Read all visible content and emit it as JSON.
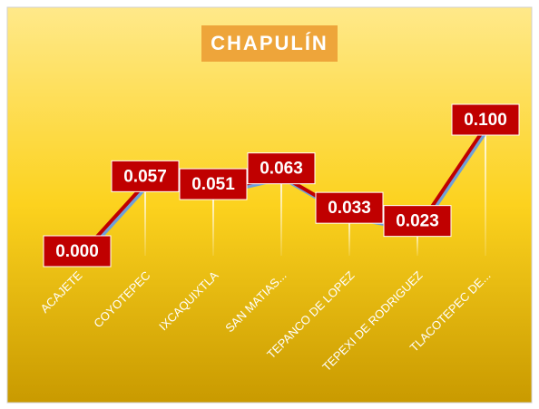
{
  "chart_data": {
    "type": "line",
    "title": "CHAPULÍN",
    "categories": [
      "ACAJETE",
      "COYOTEPEC",
      "IXCAQUIXTLA",
      "SAN MATIAS...",
      "TEPANCO DE LOPEZ",
      "TEPEXI DE RODRIGUEZ",
      "TLACOTEPEC DE..."
    ],
    "series": [
      {
        "name": "CHAPULÍN",
        "color": "#c00000",
        "values": [
          0,
          0.057,
          0.051,
          0.063,
          0.033,
          0.023,
          0.1
        ],
        "value_labels": [
          "0.000",
          "0.057",
          "0.051",
          "0.063",
          "0.033",
          "0.023",
          "0.100"
        ]
      }
    ]
  }
}
